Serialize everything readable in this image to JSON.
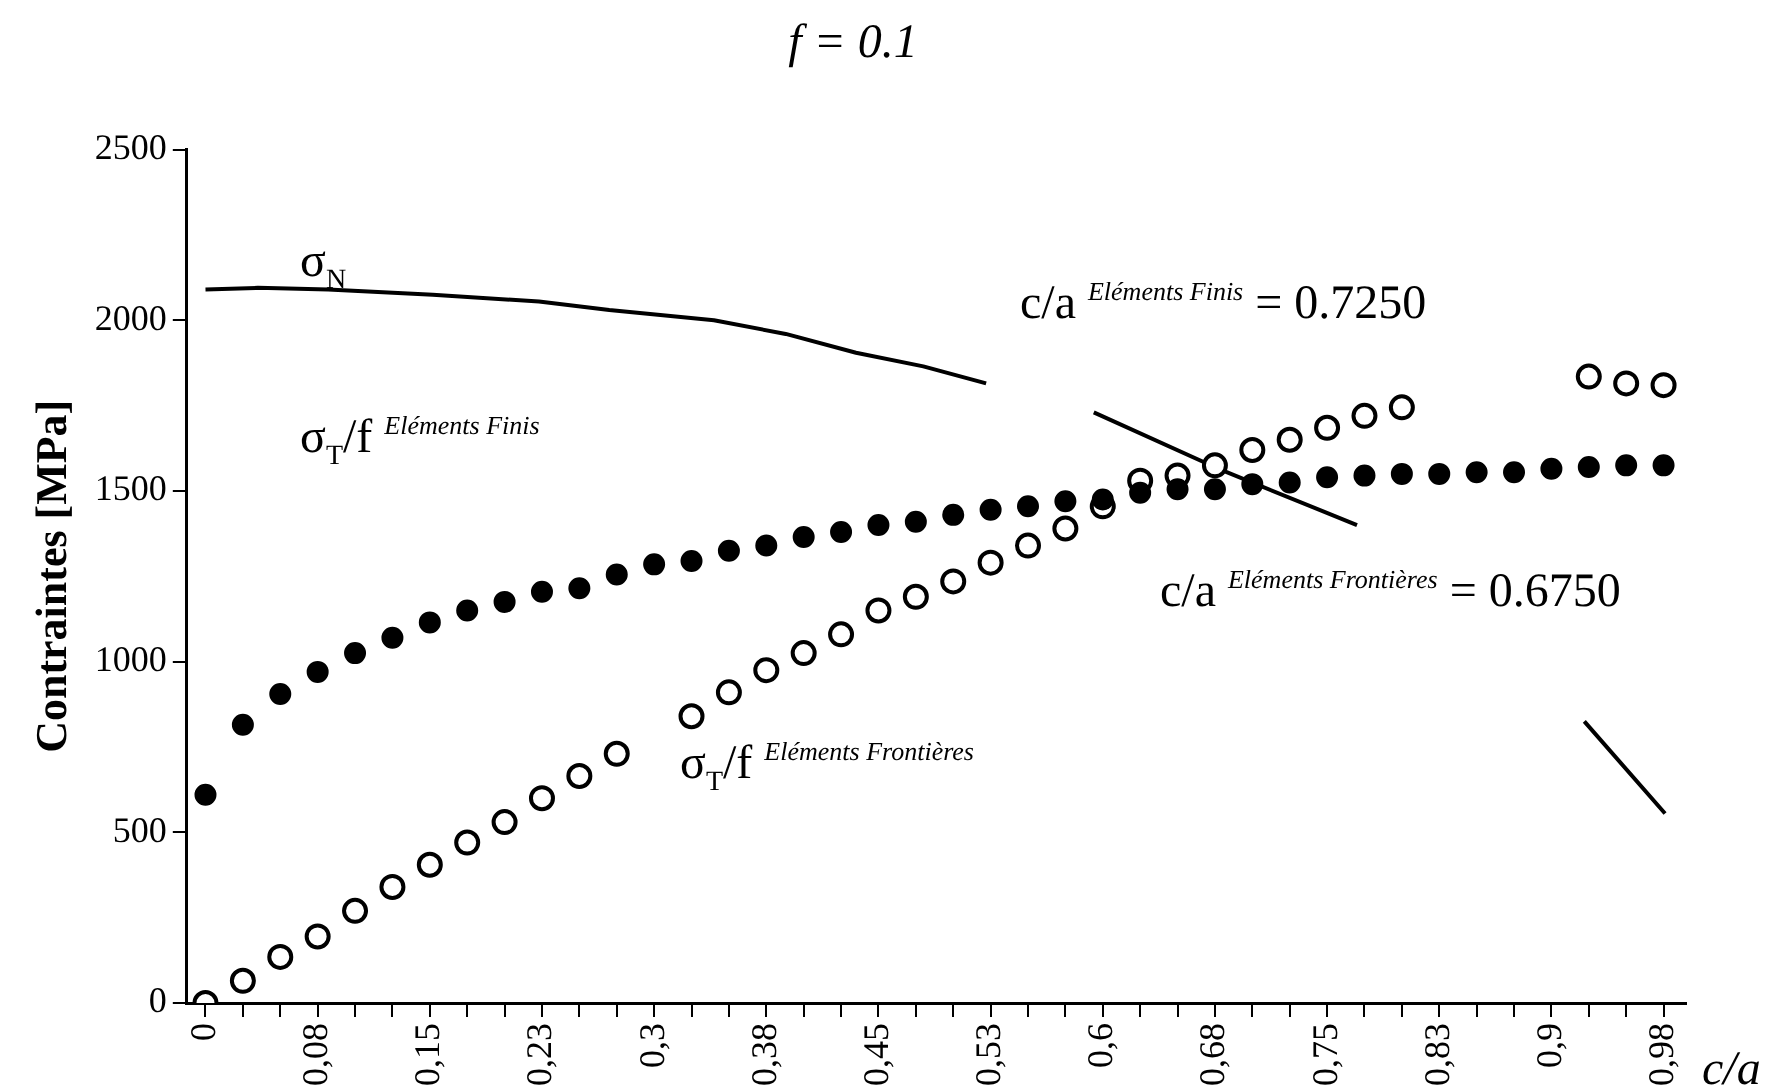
{
  "chart_data": {
    "type": "scatter",
    "title": "f = 0.1",
    "xlabel": "c/a",
    "ylabel": "Contraintes [MPa]",
    "xlim": [
      -0.0125,
      0.99
    ],
    "ylim": [
      0,
      2500
    ],
    "yticks": [
      0,
      500,
      1000,
      1500,
      2000,
      2500
    ],
    "xticks": [
      0,
      {
        "value": 0.025,
        "label": null
      },
      {
        "value": 0.05,
        "label": null
      },
      {
        "value": 0.075,
        "label": "0,08"
      },
      {
        "value": 0.1,
        "label": null
      },
      {
        "value": 0.125,
        "label": null
      },
      {
        "value": 0.15,
        "label": "0,15"
      },
      {
        "value": 0.175,
        "label": null
      },
      {
        "value": 0.2,
        "label": null
      },
      {
        "value": 0.225,
        "label": "0,23"
      },
      {
        "value": 0.25,
        "label": null
      },
      {
        "value": 0.275,
        "label": null
      },
      {
        "value": 0.3,
        "label": "0,3"
      },
      {
        "value": 0.325,
        "label": null
      },
      {
        "value": 0.35,
        "label": null
      },
      {
        "value": 0.375,
        "label": "0,38"
      },
      {
        "value": 0.4,
        "label": null
      },
      {
        "value": 0.425,
        "label": null
      },
      {
        "value": 0.45,
        "label": "0,45"
      },
      {
        "value": 0.475,
        "label": null
      },
      {
        "value": 0.5,
        "label": null
      },
      {
        "value": 0.525,
        "label": "0,53"
      },
      {
        "value": 0.55,
        "label": null
      },
      {
        "value": 0.575,
        "label": null
      },
      {
        "value": 0.6,
        "label": "0,6"
      },
      {
        "value": 0.625,
        "label": null
      },
      {
        "value": 0.65,
        "label": null
      },
      {
        "value": 0.675,
        "label": "0,68"
      },
      {
        "value": 0.7,
        "label": null
      },
      {
        "value": 0.725,
        "label": null
      },
      {
        "value": 0.75,
        "label": "0,75"
      },
      {
        "value": 0.775,
        "label": null
      },
      {
        "value": 0.8,
        "label": null
      },
      {
        "value": 0.825,
        "label": "0,83"
      },
      {
        "value": 0.85,
        "label": null
      },
      {
        "value": 0.875,
        "label": null
      },
      {
        "value": 0.9,
        "label": "0,9"
      },
      {
        "value": 0.925,
        "label": null
      },
      {
        "value": 0.95,
        "label": null
      },
      {
        "value": 0.975,
        "label": "0,98"
      }
    ],
    "x": [
      0,
      0.025,
      0.05,
      0.075,
      0.1,
      0.125,
      0.15,
      0.175,
      0.2,
      0.225,
      0.25,
      0.275,
      0.3,
      0.325,
      0.35,
      0.375,
      0.4,
      0.425,
      0.45,
      0.475,
      0.5,
      0.525,
      0.55,
      0.575,
      0.6,
      0.625,
      0.65,
      0.675,
      0.7,
      0.725,
      0.75,
      0.775,
      0.8,
      0.825,
      0.85,
      0.875,
      0.9,
      0.925,
      0.95,
      0.975
    ],
    "marker": "circle",
    "grid": false,
    "legend": false,
    "series": [
      {
        "color": "#000000",
        "values": [
          610,
          815,
          905,
          970,
          1025,
          1070,
          1115,
          1150,
          1175,
          1205,
          1215,
          1255,
          1285,
          1295,
          1325,
          1340,
          1365,
          1380,
          1400,
          1410,
          1430,
          1445,
          1455,
          1470,
          1475,
          1495,
          1505,
          1505,
          1520,
          1525,
          1540,
          1545,
          1550,
          1550,
          1555,
          1555,
          1565,
          1570,
          1575,
          1575
        ]
      },
      {
        "color": "#000000",
        "values": [
          0,
          65,
          135,
          195,
          270,
          340,
          405,
          470,
          530,
          600,
          665,
          730,
          null,
          840,
          910,
          975,
          1025,
          1080,
          1150,
          1190,
          1235,
          1290,
          1340,
          1390,
          1455,
          1530,
          1545,
          1575,
          1620,
          1650,
          1685,
          1720,
          1745,
          null,
          null,
          null,
          null,
          1835,
          1815,
          1810
        ]
      },
      {
        "type": "line",
        "color": "#000000",
        "marker": "none",
        "x": [
          0,
          0.035,
          0.082,
          0.152,
          0.223,
          0.27,
          0.34,
          0.388,
          0.435,
          0.48,
          0.522,
          0.55,
          0.594,
          0.68,
          0.77,
          0.85,
          0.922,
          0.976
        ],
        "values": [
          2090,
          2095,
          2090,
          2075,
          2055,
          2030,
          2000,
          1960,
          1905,
          1865,
          1815,
          null,
          1730,
          1560,
          1400,
          null,
          825,
          555
        ]
      }
    ],
    "annotations": [
      "σ$_{N}$",
      "σ$_{T}$/f $^{Eléments Finis}$",
      "σ$_{T}$/f $^{Eléments Frontières}$",
      "c/a $^{Eléments Finis}$ = 0.7250",
      "c/a $^{Eléments Frontières}$ = 0.6750"
    ]
  }
}
